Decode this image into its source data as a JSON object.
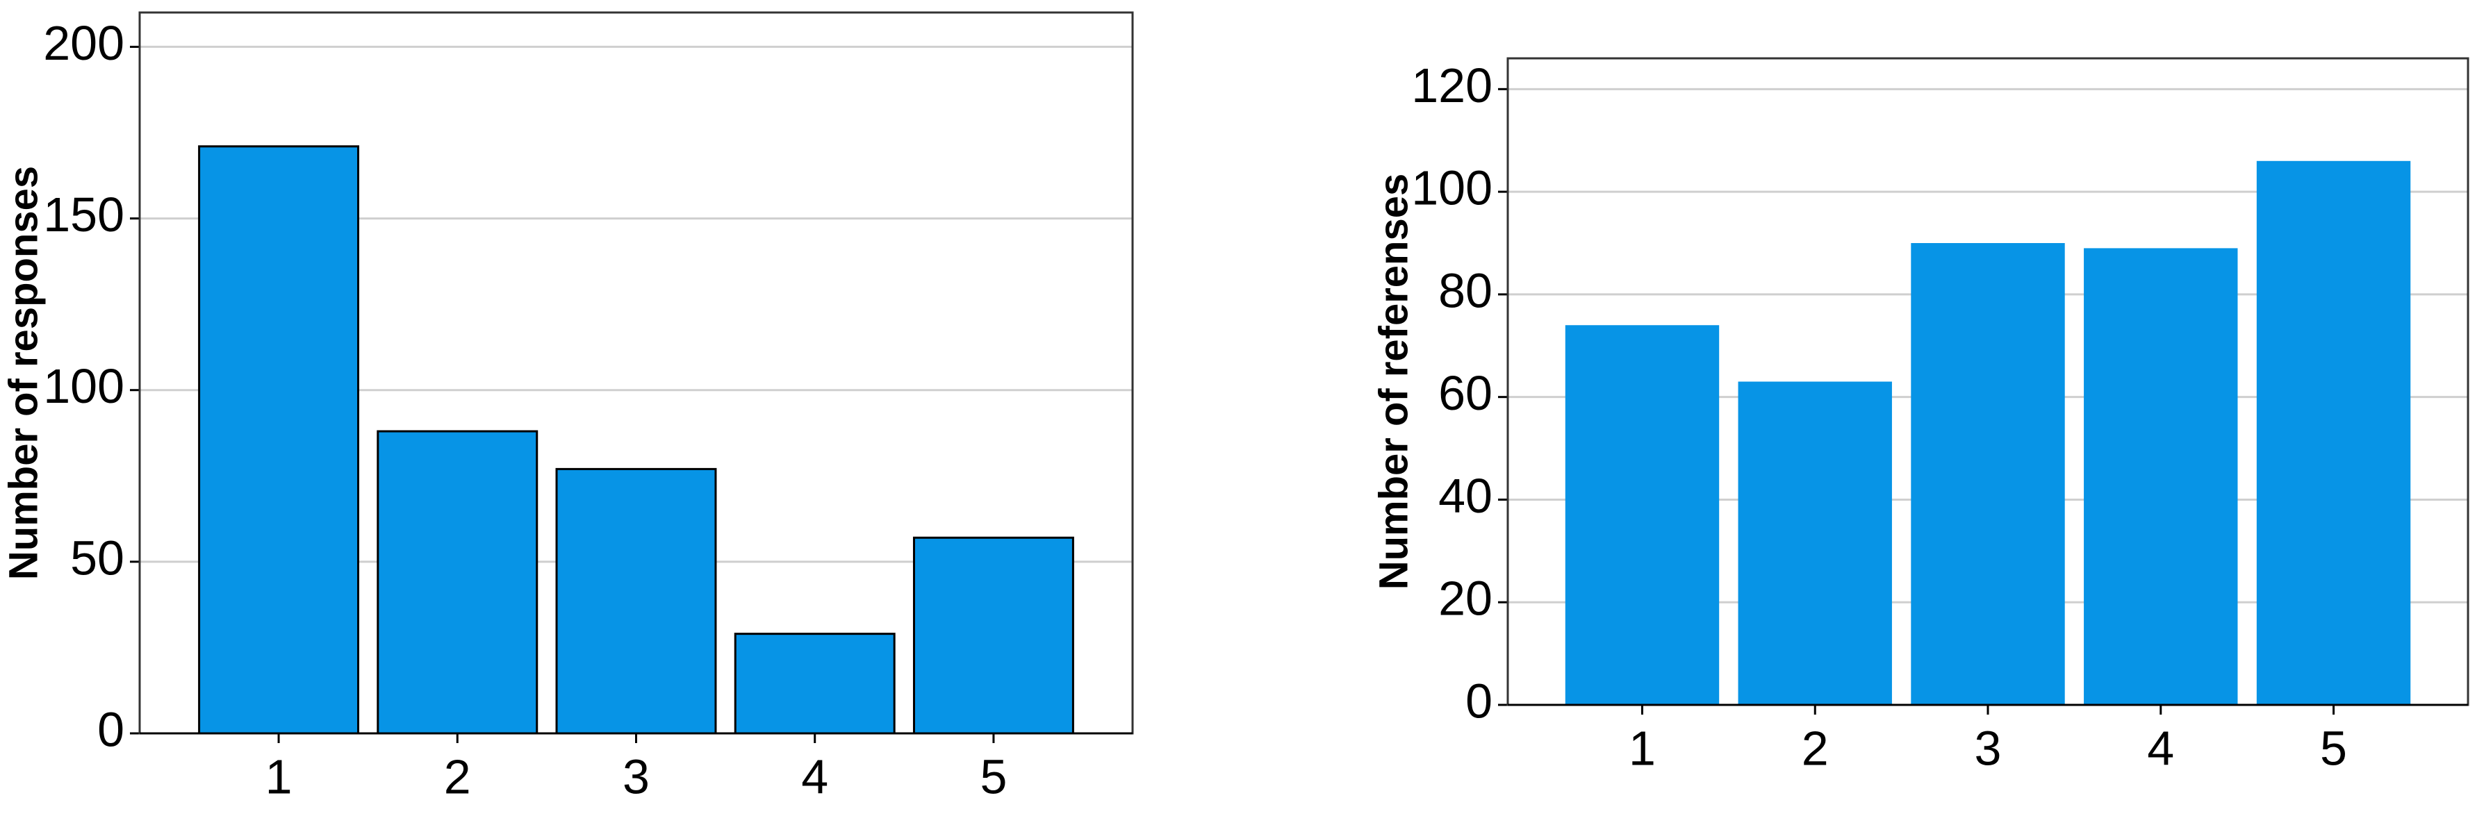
{
  "chart_data": [
    {
      "type": "bar",
      "ylabel": "Number of responses",
      "categories": [
        "1",
        "2",
        "3",
        "4",
        "5"
      ],
      "values": [
        171,
        88,
        77,
        29,
        57
      ],
      "color": "#0794e6",
      "edgecolor": "#000000",
      "ylim": [
        0,
        210
      ],
      "yticks": [
        0,
        50,
        100,
        150,
        200
      ],
      "grid": true
    },
    {
      "type": "bar",
      "ylabel": "Number of referenses",
      "categories": [
        "1",
        "2",
        "3",
        "4",
        "5"
      ],
      "values": [
        74,
        63,
        90,
        89,
        106
      ],
      "color": "#0794e6",
      "ylim": [
        0,
        126
      ],
      "yticks": [
        0,
        20,
        40,
        60,
        80,
        100,
        120
      ],
      "grid": true
    }
  ]
}
